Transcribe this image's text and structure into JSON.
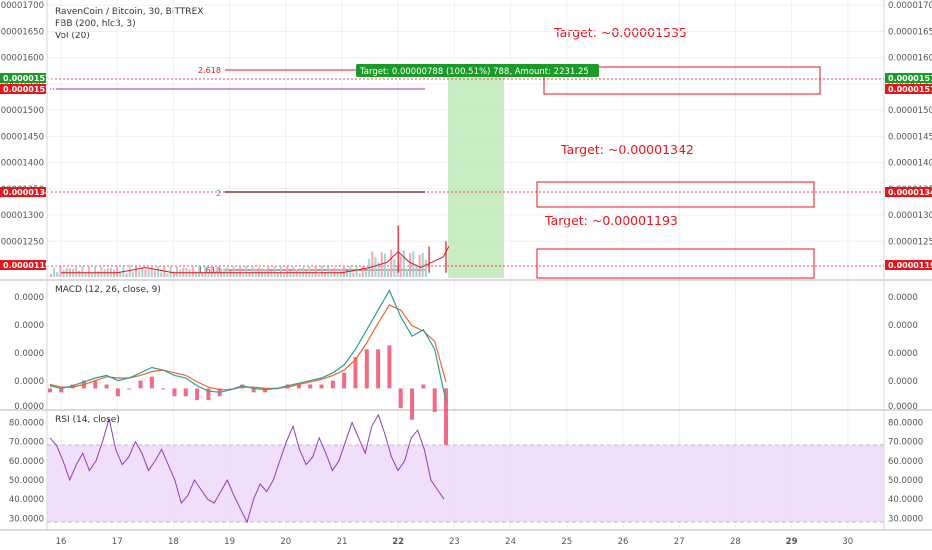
{
  "header": {
    "title": "RavenCoin / Bitcoin, 30, BITTREX",
    "indicator1": "FBB (200, hlc3, 3)",
    "indicator2": "Vol (20)"
  },
  "targets": [
    "Target: ~0.00001535",
    "Target: ~0.00001342",
    "Target: ~0.00001193"
  ],
  "colors": {
    "target_red": "#e8141c",
    "green_tag": "#1a9b27",
    "macd_line": "#2aa198",
    "signal_line": "#f0642a",
    "histogram": "#f0506e",
    "rsi_line": "#8f3db8",
    "rsi_band": "#eedcfb",
    "projection": "#b8e6b2",
    "fib_line": "#b57ad6"
  },
  "chart_data": [
    {
      "type": "line",
      "title": "RavenCoin / Bitcoin, 30, BITTREX",
      "y_ticks": [
        "0.00001700",
        "0.00001650",
        "0.00001600",
        "0.00001550",
        "0.00001500",
        "0.00001450",
        "0.00001400",
        "0.00001350",
        "0.00001300",
        "0.00001250"
      ],
      "y_range": [
        1.18e-05,
        1.71e-05
      ],
      "x_ticks": [
        "16",
        "17",
        "18",
        "19",
        "20",
        "21",
        "22",
        "23",
        "24",
        "25",
        "26",
        "27",
        "28",
        "29",
        "30"
      ],
      "price_tags": [
        {
          "label": "0.00001572",
          "color": "green"
        },
        {
          "label": "0.00001570",
          "color": "red"
        },
        {
          "label": "0.00001342",
          "color": "red"
        },
        {
          "label": "0.00001193",
          "color": "red"
        }
      ],
      "fib_labels": [
        "2.618",
        "2",
        "1.618"
      ],
      "trade_label": "Target: 0.00000788 (100.51%) 788, Amount: 2231.25",
      "price_series": {
        "x": [
          16.0,
          16.5,
          17.0,
          17.5,
          18.0,
          18.5,
          19.0,
          19.5,
          20.0,
          20.5,
          21.0,
          21.5,
          21.8,
          22.0,
          22.2,
          22.4,
          22.6,
          22.8,
          22.9
        ],
        "y": [
          1.19e-05,
          1.19e-05,
          1.19e-05,
          1.2e-05,
          1.19e-05,
          1.19e-05,
          1.19e-05,
          1.19e-05,
          1.19e-05,
          1.19e-05,
          1.19e-05,
          1.2e-05,
          1.21e-05,
          1.23e-05,
          1.21e-05,
          1.2e-05,
          1.21e-05,
          1.22e-05,
          1.24e-05
        ]
      }
    },
    {
      "type": "line",
      "title": "MACD (12, 26, close, 9)",
      "y_ticks": [
        "0.0000",
        "0.0000",
        "0.0000",
        "0.0000",
        "0.0000"
      ],
      "series": [
        {
          "values": [
            0.02,
            0.0,
            0.02,
            0.05,
            0.08,
            0.1,
            0.06,
            0.08,
            0.12,
            0.16,
            0.14,
            0.1,
            0.08,
            0.02,
            -0.02,
            -0.03,
            -0.01,
            0.02,
            0.0,
            -0.01,
            0.0,
            0.02,
            0.04,
            0.06,
            0.08,
            0.12,
            0.18,
            0.3,
            0.45,
            0.6,
            0.75,
            0.55,
            0.4,
            0.45,
            0.3,
            -0.1
          ]
        },
        {
          "values": [
            0.03,
            0.01,
            0.01,
            0.03,
            0.06,
            0.09,
            0.08,
            0.08,
            0.1,
            0.13,
            0.14,
            0.12,
            0.1,
            0.05,
            0.01,
            -0.01,
            -0.01,
            0.01,
            0.01,
            0.0,
            0.0,
            0.01,
            0.03,
            0.05,
            0.07,
            0.1,
            0.14,
            0.22,
            0.35,
            0.5,
            0.64,
            0.6,
            0.48,
            0.44,
            0.36,
            0.05
          ]
        }
      ]
    },
    {
      "type": "line",
      "title": "RSI (14, close)",
      "y_ticks": [
        "80.0000",
        "70.0000",
        "60.0000",
        "50.0000",
        "40.0000",
        "30.0000"
      ],
      "y_range": [
        25,
        86
      ],
      "band": [
        30,
        70
      ],
      "series": [
        {
          "values": [
            72,
            68,
            60,
            50,
            58,
            64,
            55,
            60,
            70,
            82,
            66,
            58,
            62,
            70,
            64,
            55,
            60,
            66,
            58,
            50,
            38,
            42,
            50,
            45,
            40,
            38,
            44,
            50,
            42,
            35,
            28,
            40,
            48,
            44,
            50,
            60,
            70,
            78,
            66,
            58,
            62,
            72,
            64,
            55,
            60,
            70,
            80,
            72,
            64,
            78,
            84,
            74,
            62,
            55,
            60,
            72,
            76,
            66,
            50,
            45,
            40
          ]
        }
      ]
    }
  ]
}
